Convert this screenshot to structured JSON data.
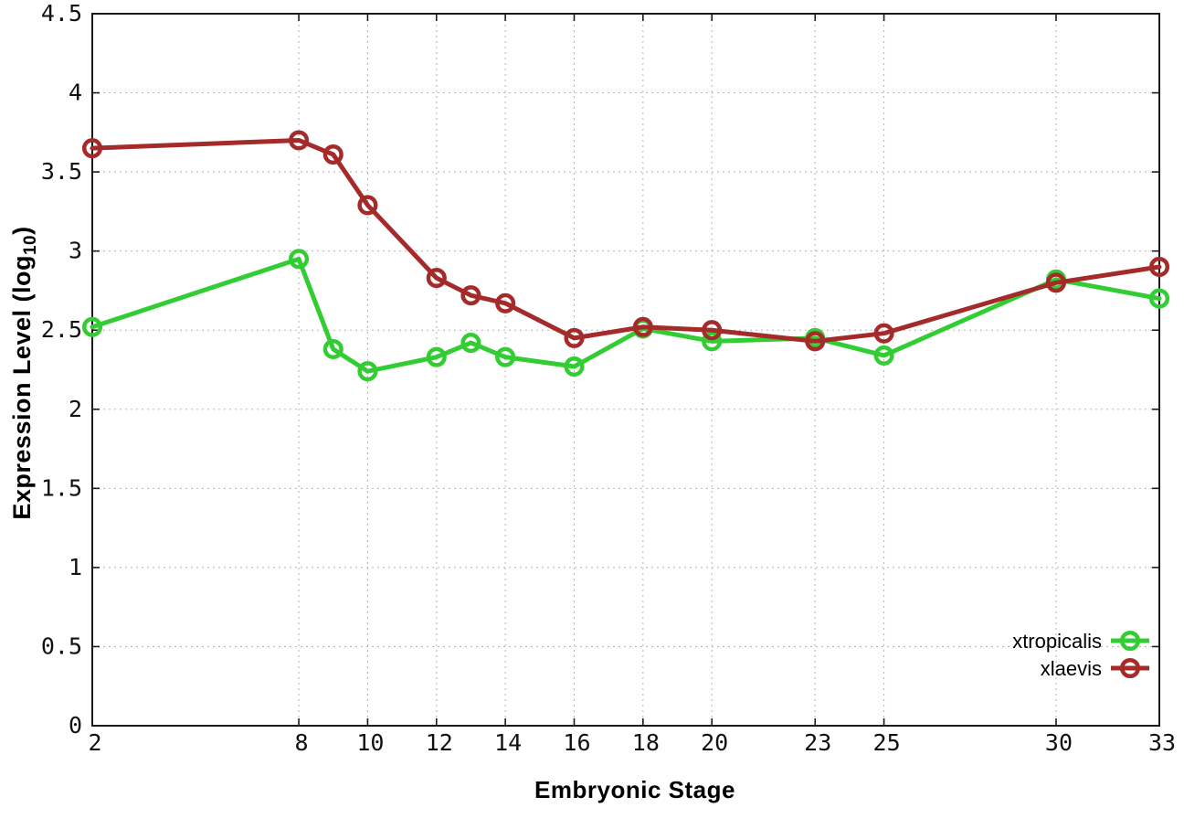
{
  "chart_data": {
    "type": "line",
    "title": "",
    "xlabel": "Embryonic Stage",
    "ylabel": {
      "main": "Expression Level (log",
      "sub": "10",
      "suffix": ")"
    },
    "ylabel_plain": "Expression Level (log10)",
    "x": [
      2,
      8,
      9,
      10,
      12,
      13,
      14,
      16,
      18,
      20,
      23,
      25,
      30,
      33
    ],
    "xlim": [
      2,
      33
    ],
    "ylim": [
      0,
      4.5
    ],
    "xtick_labels": [
      "2",
      "8",
      "10",
      "12",
      "14",
      "16",
      "18",
      "20",
      "23",
      "25",
      "30",
      "33"
    ],
    "xtick_values": [
      2,
      8,
      10,
      12,
      14,
      16,
      18,
      20,
      23,
      25,
      30,
      33
    ],
    "ytick_labels": [
      "0",
      "0.5",
      "1",
      "1.5",
      "2",
      "2.5",
      "3",
      "3.5",
      "4",
      "4.5"
    ],
    "ytick_values": [
      0,
      0.5,
      1,
      1.5,
      2,
      2.5,
      3,
      3.5,
      4,
      4.5
    ],
    "grid": true,
    "legend_position": "bottom-right",
    "marker": "open-circle",
    "series": [
      {
        "name": "xtropicalis",
        "color": "#32cd32",
        "values": [
          2.52,
          2.95,
          2.38,
          2.24,
          2.33,
          2.42,
          2.33,
          2.27,
          2.51,
          2.43,
          2.45,
          2.34,
          2.82,
          2.7
        ]
      },
      {
        "name": "xlaevis",
        "color": "#a52a2a",
        "values": [
          3.65,
          3.7,
          3.61,
          3.29,
          2.83,
          2.72,
          2.67,
          2.45,
          2.52,
          2.5,
          2.43,
          2.48,
          2.8,
          2.9
        ]
      }
    ]
  }
}
